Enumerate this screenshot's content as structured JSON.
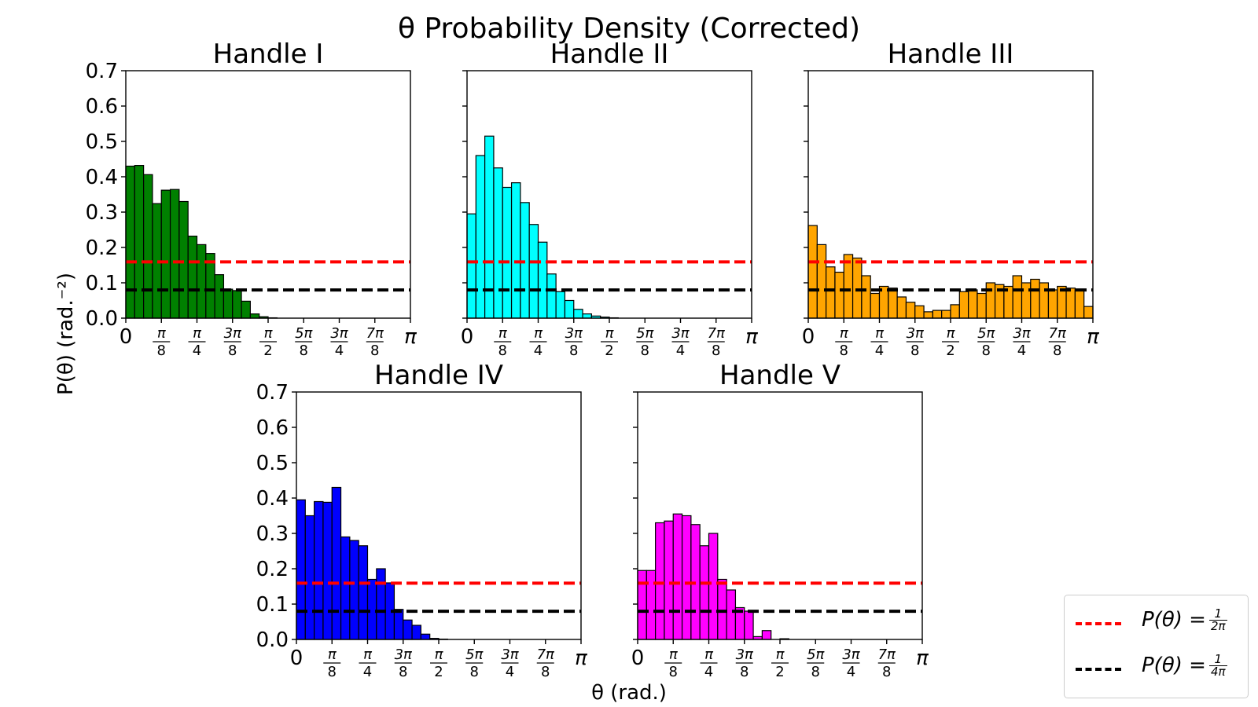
{
  "figure": {
    "suptitle": "θ Probability Density (Corrected)",
    "ylabel": "P(θ) (rad.⁻²)",
    "xlabel": "θ (rad.)"
  },
  "legend": {
    "placement": "lower-right",
    "entries": [
      {
        "prefix": "P(θ) =",
        "num": "1",
        "den": "2π",
        "color": "#ff0000"
      },
      {
        "prefix": "P(θ) =",
        "num": "1",
        "den": "4π",
        "color": "#000000"
      }
    ]
  },
  "chart_data": [
    {
      "type": "bar",
      "title": "Handle I",
      "color": "#008000",
      "xlim": [
        0,
        3.14159
      ],
      "ylim": [
        0,
        0.7
      ],
      "yticks": [
        "0.0",
        "0.1",
        "0.2",
        "0.3",
        "0.4",
        "0.5",
        "0.6",
        "0.7"
      ],
      "bins": 32,
      "values": [
        0.43,
        0.432,
        0.406,
        0.324,
        0.362,
        0.364,
        0.33,
        0.232,
        0.208,
        0.183,
        0.123,
        0.082,
        0.078,
        0.048,
        0.012,
        0.004,
        0.001,
        0,
        0,
        0,
        0,
        0,
        0,
        0,
        0,
        0,
        0,
        0,
        0,
        0,
        0,
        0
      ],
      "hlines": [
        0.1592,
        0.0796
      ]
    },
    {
      "type": "bar",
      "title": "Handle II",
      "color": "#00ffff",
      "xlim": [
        0,
        3.14159
      ],
      "ylim": [
        0,
        0.7
      ],
      "bins": 32,
      "values": [
        0.295,
        0.46,
        0.515,
        0.425,
        0.37,
        0.383,
        0.327,
        0.265,
        0.215,
        0.125,
        0.075,
        0.05,
        0.025,
        0.012,
        0.006,
        0.003,
        0.001,
        0,
        0,
        0,
        0,
        0,
        0,
        0,
        0,
        0,
        0,
        0,
        0,
        0,
        0,
        0
      ],
      "hlines": [
        0.1592,
        0.0796
      ]
    },
    {
      "type": "bar",
      "title": "Handle III",
      "color": "#ffa500",
      "xlim": [
        0,
        3.14159
      ],
      "ylim": [
        0,
        0.7
      ],
      "bins": 32,
      "values": [
        0.262,
        0.208,
        0.145,
        0.13,
        0.18,
        0.17,
        0.12,
        0.07,
        0.09,
        0.085,
        0.06,
        0.045,
        0.035,
        0.018,
        0.022,
        0.022,
        0.038,
        0.075,
        0.08,
        0.07,
        0.1,
        0.095,
        0.09,
        0.12,
        0.1,
        0.11,
        0.1,
        0.08,
        0.09,
        0.085,
        0.08,
        0.033
      ],
      "hlines": [
        0.1592,
        0.0796
      ]
    },
    {
      "type": "bar",
      "title": "Handle IV",
      "color": "#0000ff",
      "xlim": [
        0,
        3.14159
      ],
      "ylim": [
        0,
        0.7
      ],
      "yticks": [
        "0.0",
        "0.1",
        "0.2",
        "0.3",
        "0.4",
        "0.5",
        "0.6",
        "0.7"
      ],
      "bins": 32,
      "values": [
        0.395,
        0.35,
        0.39,
        0.388,
        0.43,
        0.29,
        0.28,
        0.265,
        0.17,
        0.2,
        0.16,
        0.085,
        0.055,
        0.04,
        0.015,
        0.003,
        0.001,
        0,
        0,
        0,
        0,
        0,
        0,
        0,
        0,
        0,
        0,
        0,
        0,
        0,
        0,
        0
      ],
      "hlines": [
        0.1592,
        0.0796
      ]
    },
    {
      "type": "bar",
      "title": "Handle V",
      "color": "#ff00ff",
      "xlim": [
        0,
        3.14159
      ],
      "ylim": [
        0,
        0.7
      ],
      "bins": 32,
      "values": [
        0.195,
        0.195,
        0.33,
        0.335,
        0.355,
        0.35,
        0.325,
        0.265,
        0.3,
        0.17,
        0.14,
        0.09,
        0.08,
        0.008,
        0.025,
        0,
        0.002,
        0,
        0,
        0,
        0,
        0,
        0,
        0,
        0,
        0,
        0,
        0,
        0,
        0,
        0,
        0
      ],
      "hlines": [
        0.1592,
        0.0796
      ]
    }
  ],
  "xticks": [
    {
      "main": "0"
    },
    {
      "num": "π",
      "den": "8"
    },
    {
      "num": "π",
      "den": "4"
    },
    {
      "num": "3π",
      "den": "8"
    },
    {
      "num": "π",
      "den": "2"
    },
    {
      "num": "5π",
      "den": "8"
    },
    {
      "num": "3π",
      "den": "4"
    },
    {
      "num": "7π",
      "den": "8"
    },
    {
      "main": "π"
    }
  ]
}
